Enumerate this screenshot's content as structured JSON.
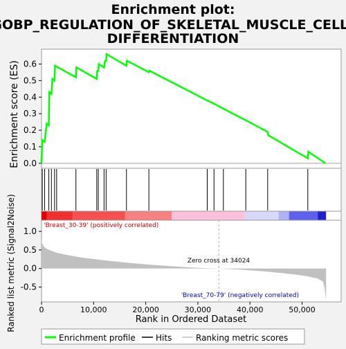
{
  "chart_data": {
    "type": "line",
    "title": "Enrichment plot: GOBP_REGULATION_OF_SKELETAL_MUSCLE_CELL_DIFFERENTIATION",
    "title_lines": [
      "Enrichment plot:",
      "GOBP_REGULATION_OF_SKELETAL_MUSCLE_CELL_",
      "DIFFERENTIATION"
    ],
    "top_panel": {
      "ylabel": "Enrichment score (ES)",
      "ylim": [
        -0.03,
        0.69
      ],
      "yticks": [
        0.0,
        0.1,
        0.2,
        0.3,
        0.4,
        0.5,
        0.6
      ],
      "ytick_labels": [
        "0.0",
        "0.1",
        "0.2",
        "0.3",
        "0.4",
        "0.5",
        "0.6"
      ],
      "series": [
        {
          "name": "Enrichment profile",
          "color": "#00ff00",
          "x": [
            0,
            150,
            600,
            1000,
            1400,
            1500,
            1900,
            2100,
            2500,
            2600,
            6600,
            6700,
            10600,
            10700,
            10900,
            11000,
            12000,
            12200,
            12400,
            12500,
            16300,
            16400,
            20600,
            20700,
            31800,
            33100,
            34900,
            39200,
            43400,
            43500,
            51100,
            51200,
            54500
          ],
          "y": [
            0.0,
            0.14,
            0.13,
            0.24,
            0.23,
            0.43,
            0.42,
            0.51,
            0.5,
            0.59,
            0.52,
            0.58,
            0.51,
            0.56,
            0.56,
            0.6,
            0.58,
            0.62,
            0.62,
            0.66,
            0.59,
            0.62,
            0.55,
            0.56,
            0.38,
            0.36,
            0.33,
            0.26,
            0.19,
            0.17,
            0.03,
            0.07,
            0.0
          ]
        }
      ]
    },
    "hits": [
      150,
      600,
      1400,
      1900,
      2500,
      2900,
      6600,
      10600,
      10900,
      12000,
      12400,
      16300,
      20600,
      31800,
      33100,
      34900,
      39200,
      43400,
      51100
    ],
    "bottom_panel": {
      "ylabel": "Ranked list metric (Signal2Noise)",
      "ylim": [
        -0.9,
        1.3
      ],
      "yticks": [
        -0.5,
        0.0,
        0.5,
        1.0
      ],
      "ytick_labels": [
        "-0.5",
        "0.0",
        "0.5",
        "1.0"
      ],
      "metric_profile": {
        "x": [
          0,
          100,
          500,
          1000,
          2000,
          3000,
          5000,
          8000,
          12000,
          16000,
          20000,
          25000,
          30000,
          34024,
          38000,
          42000,
          46000,
          49000,
          51000,
          53000,
          54000,
          54300,
          54600
        ],
        "y": [
          0.82,
          0.68,
          0.58,
          0.53,
          0.47,
          0.42,
          0.36,
          0.29,
          0.22,
          0.16,
          0.11,
          0.06,
          0.02,
          0.0,
          -0.03,
          -0.07,
          -0.12,
          -0.17,
          -0.21,
          -0.27,
          -0.35,
          -0.5,
          -0.85
        ]
      },
      "zero_cross": 34024,
      "zero_cross_label": "Zero cross at 34024",
      "positive_label": "'Breast_30-39' (positively correlated)",
      "negative_label": "'Breast_70-79' (negatively correlated)",
      "positive_label_color": "#cc0000",
      "negative_label_color": "#0000cc"
    },
    "heatmap_segments": [
      {
        "start": 0,
        "end": 1000,
        "color": "#e00000"
      },
      {
        "start": 1000,
        "end": 6000,
        "color": "#f03030"
      },
      {
        "start": 6000,
        "end": 16000,
        "color": "#f55050"
      },
      {
        "start": 16000,
        "end": 25000,
        "color": "#f78080"
      },
      {
        "start": 25000,
        "end": 39000,
        "color": "#fac0dc"
      },
      {
        "start": 39000,
        "end": 45500,
        "color": "#d8d8f8"
      },
      {
        "start": 45500,
        "end": 47500,
        "color": "#b0b0f5"
      },
      {
        "start": 47500,
        "end": 53000,
        "color": "#6060ee"
      },
      {
        "start": 53000,
        "end": 54600,
        "color": "#2020cc"
      }
    ],
    "xlabel": "Rank in Ordered Dataset",
    "xlim": [
      0,
      57500
    ],
    "xticks": [
      0,
      10000,
      20000,
      30000,
      40000,
      50000
    ],
    "xtick_labels": [
      "0",
      "10,000",
      "20,000",
      "30,000",
      "40,000",
      "50,000"
    ],
    "legend": {
      "placement": "bottom",
      "entries": [
        {
          "label": "Enrichment profile",
          "color": "#00ff00"
        },
        {
          "label": "Hits",
          "color": "#000000"
        },
        {
          "label": "Ranking metric scores",
          "color": "#c0c0c0"
        }
      ]
    },
    "grid": false
  }
}
